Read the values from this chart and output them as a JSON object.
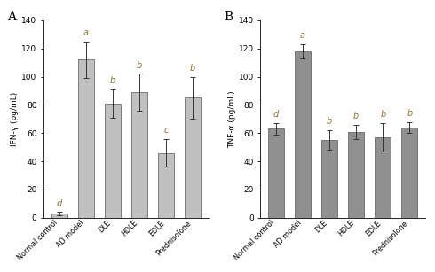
{
  "panel_A": {
    "title": "A",
    "ylabel": "IFN-γ (pg/mL)",
    "categories": [
      "Normal control",
      "AD model",
      "DLE",
      "HDLE",
      "EDLE",
      "Prednisolone"
    ],
    "values": [
      3,
      112,
      81,
      89,
      46,
      85
    ],
    "errors": [
      1,
      13,
      10,
      13,
      10,
      15
    ],
    "letters": [
      "d",
      "a",
      "b",
      "b",
      "c",
      "b"
    ],
    "ylim": [
      0,
      140
    ],
    "yticks": [
      0,
      20,
      40,
      60,
      80,
      100,
      120,
      140
    ],
    "bar_color": "#c0c0c0",
    "letter_color": "#8B7336"
  },
  "panel_B": {
    "title": "B",
    "ylabel": "TNF-α (pg/mL)",
    "categories": [
      "Normal control",
      "AD model",
      "DLE",
      "HDLE",
      "EDLE",
      "Prednisolone"
    ],
    "values": [
      63,
      118,
      55,
      61,
      57,
      64
    ],
    "errors": [
      4,
      5,
      7,
      5,
      10,
      4
    ],
    "letters": [
      "d",
      "a",
      "b",
      "b",
      "b",
      "b"
    ],
    "ylim": [
      0,
      140
    ],
    "yticks": [
      0,
      20,
      40,
      60,
      80,
      100,
      120,
      140
    ],
    "bar_color": "#909090",
    "letter_color": "#8B7336"
  },
  "figsize": [
    4.9,
    3.07
  ],
  "dpi": 100
}
